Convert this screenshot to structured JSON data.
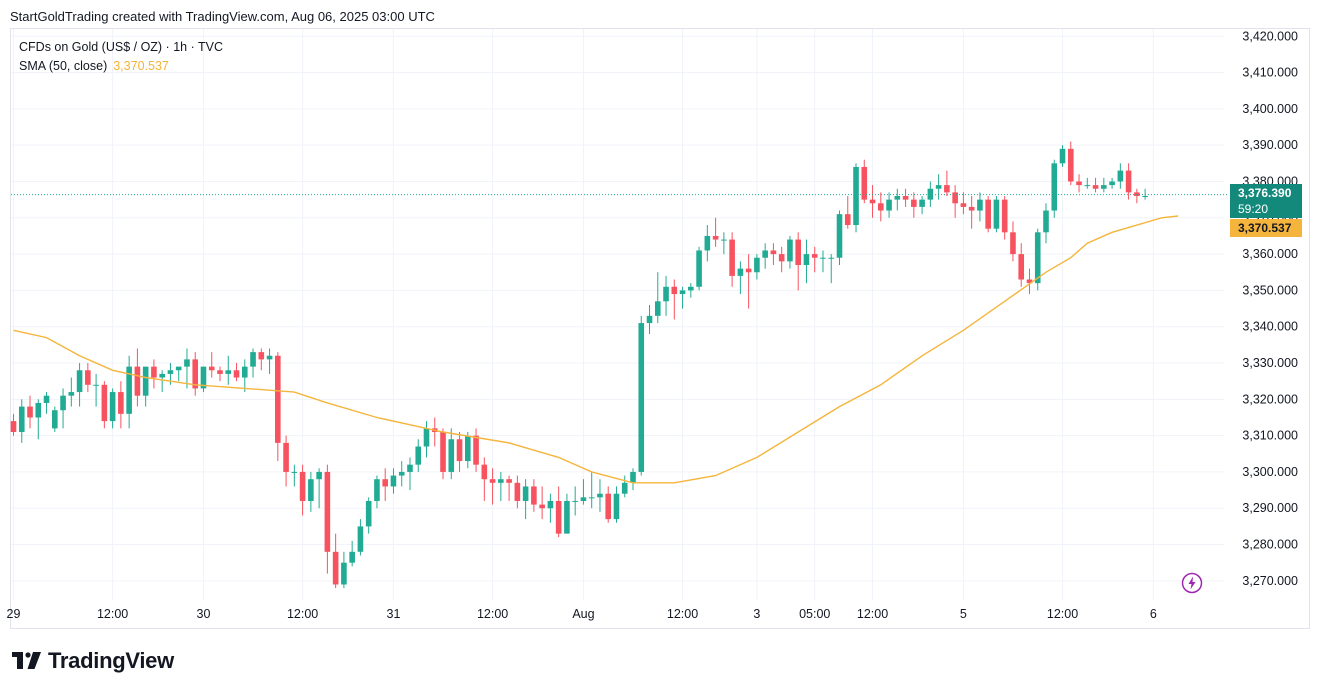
{
  "attribution": "StartGoldTrading created with TradingView.com, Aug 06, 2025 03:00 UTC",
  "legend": {
    "symbol": "CFDs on Gold (US$ / OZ) · 1h · TVC",
    "indicator": "SMA (50, close)",
    "indicator_value": "3,370.537"
  },
  "badges": {
    "last_price": "3,376.390",
    "countdown": "59:20",
    "sma_value": "3,370.537"
  },
  "brand": "TradingView",
  "icons": [
    "tradingview-logo-icon",
    "flash-icon"
  ],
  "colors": {
    "up": "#22ab94",
    "down": "#f7525f",
    "sma": "#f5b53c",
    "last_price_line": "#22ab94"
  },
  "chart_data": {
    "type": "candlestick",
    "symbol": "CFDs on Gold (US$ / OZ)",
    "interval": "1h",
    "ylim": [
      3265,
      3422
    ],
    "y_ticks": [
      "3,420.000",
      "3,410.000",
      "3,400.000",
      "3,390.000",
      "3,380.000",
      "3,370.000",
      "3,360.000",
      "3,350.000",
      "3,340.000",
      "3,330.000",
      "3,320.000",
      "3,310.000",
      "3,300.000",
      "3,290.000",
      "3,280.000",
      "3,270.000"
    ],
    "x_ticks": [
      {
        "label": "29",
        "bar": 0
      },
      {
        "label": "12:00",
        "bar": 12
      },
      {
        "label": "30",
        "bar": 23
      },
      {
        "label": "12:00",
        "bar": 35
      },
      {
        "label": "31",
        "bar": 46
      },
      {
        "label": "12:00",
        "bar": 58
      },
      {
        "label": "Aug",
        "bar": 69
      },
      {
        "label": "12:00",
        "bar": 81
      },
      {
        "label": "3",
        "bar": 90
      },
      {
        "label": "05:00",
        "bar": 97
      },
      {
        "label": "12:00",
        "bar": 104
      },
      {
        "label": "5",
        "bar": 115
      },
      {
        "label": "12:00",
        "bar": 127
      },
      {
        "label": "6",
        "bar": 138
      }
    ],
    "last_price": 3376.39,
    "sma_value": 3370.537,
    "candles": [
      [
        3314,
        3316,
        3310,
        3311
      ],
      [
        3311,
        3320,
        3308,
        3318
      ],
      [
        3318,
        3321,
        3312,
        3315
      ],
      [
        3315,
        3320,
        3309,
        3319
      ],
      [
        3319,
        3322,
        3316,
        3321
      ],
      [
        3312,
        3318,
        3311,
        3317
      ],
      [
        3317,
        3323,
        3312,
        3321
      ],
      [
        3321,
        3326,
        3318,
        3322
      ],
      [
        3322,
        3330,
        3318,
        3328
      ],
      [
        3328,
        3330,
        3322,
        3324
      ],
      [
        3324,
        3327,
        3318,
        3324
      ],
      [
        3324,
        3325,
        3312,
        3314
      ],
      [
        3314,
        3323,
        3312,
        3322
      ],
      [
        3322,
        3325,
        3312,
        3316
      ],
      [
        3316,
        3332,
        3312,
        3329
      ],
      [
        3329,
        3334,
        3318,
        3321
      ],
      [
        3321,
        3328,
        3318,
        3329
      ],
      [
        3329,
        3331,
        3323,
        3326
      ],
      [
        3326,
        3328,
        3322,
        3327
      ],
      [
        3327,
        3330,
        3324,
        3328
      ],
      [
        3328,
        3329,
        3325,
        3329
      ],
      [
        3329,
        3334,
        3323,
        3331
      ],
      [
        3331,
        3333,
        3321,
        3323
      ],
      [
        3323,
        3329,
        3322,
        3329
      ],
      [
        3329,
        3333,
        3326,
        3328
      ],
      [
        3328,
        3329,
        3325,
        3327
      ],
      [
        3327,
        3332,
        3324,
        3328
      ],
      [
        3328,
        3330,
        3325,
        3326
      ],
      [
        3326,
        3331,
        3322,
        3329
      ],
      [
        3329,
        3334,
        3326,
        3333
      ],
      [
        3333,
        3334,
        3328,
        3331
      ],
      [
        3331,
        3334,
        3327,
        3332
      ],
      [
        3332,
        3333,
        3303,
        3308
      ],
      [
        3308,
        3310,
        3296,
        3300
      ],
      [
        3300,
        3302,
        3296,
        3300
      ],
      [
        3300,
        3302,
        3288,
        3292
      ],
      [
        3292,
        3300,
        3289,
        3298
      ],
      [
        3298,
        3301,
        3290,
        3300
      ],
      [
        3300,
        3302,
        3272,
        3278
      ],
      [
        3278,
        3283,
        3268,
        3269
      ],
      [
        3269,
        3278,
        3268,
        3275
      ],
      [
        3275,
        3281,
        3274,
        3278
      ],
      [
        3278,
        3287,
        3277,
        3285
      ],
      [
        3285,
        3293,
        3283,
        3292
      ],
      [
        3292,
        3299,
        3290,
        3298
      ],
      [
        3298,
        3301,
        3292,
        3296
      ],
      [
        3296,
        3301,
        3294,
        3299
      ],
      [
        3299,
        3303,
        3296,
        3300
      ],
      [
        3300,
        3304,
        3295,
        3302
      ],
      [
        3302,
        3309,
        3300,
        3307
      ],
      [
        3307,
        3314,
        3304,
        3312
      ],
      [
        3312,
        3315,
        3307,
        3311
      ],
      [
        3311,
        3312,
        3298,
        3300
      ],
      [
        3300,
        3312,
        3298,
        3309
      ],
      [
        3309,
        3311,
        3300,
        3303
      ],
      [
        3303,
        3311,
        3301,
        3310
      ],
      [
        3310,
        3312,
        3300,
        3302
      ],
      [
        3302,
        3304,
        3292,
        3298
      ],
      [
        3298,
        3301,
        3291,
        3297
      ],
      [
        3297,
        3300,
        3292,
        3298
      ],
      [
        3298,
        3299,
        3292,
        3297
      ],
      [
        3297,
        3299,
        3290,
        3292
      ],
      [
        3292,
        3298,
        3287,
        3296
      ],
      [
        3296,
        3298,
        3289,
        3291
      ],
      [
        3291,
        3296,
        3287,
        3290
      ],
      [
        3290,
        3294,
        3286,
        3292
      ],
      [
        3292,
        3296,
        3282,
        3283
      ],
      [
        3283,
        3294,
        3283,
        3292
      ],
      [
        3292,
        3296,
        3288,
        3292
      ],
      [
        3292,
        3298,
        3291,
        3293
      ],
      [
        3293,
        3300,
        3290,
        3293
      ],
      [
        3293,
        3298,
        3289,
        3294
      ],
      [
        3294,
        3296,
        3286,
        3287
      ],
      [
        3287,
        3296,
        3286,
        3294
      ],
      [
        3294,
        3299,
        3293,
        3297
      ],
      [
        3297,
        3301,
        3295,
        3300
      ],
      [
        3300,
        3343,
        3299,
        3341
      ],
      [
        3341,
        3346,
        3338,
        3343
      ],
      [
        3343,
        3355,
        3341,
        3347
      ],
      [
        3347,
        3354,
        3343,
        3351
      ],
      [
        3351,
        3353,
        3342,
        3349
      ],
      [
        3349,
        3351,
        3345,
        3350
      ],
      [
        3350,
        3352,
        3348,
        3351
      ],
      [
        3351,
        3362,
        3350,
        3361
      ],
      [
        3361,
        3368,
        3358,
        3365
      ],
      [
        3365,
        3370,
        3362,
        3364
      ],
      [
        3364,
        3366,
        3360,
        3364
      ],
      [
        3364,
        3366,
        3351,
        3354
      ],
      [
        3354,
        3358,
        3349,
        3356
      ],
      [
        3356,
        3360,
        3345,
        3355
      ],
      [
        3355,
        3360,
        3353,
        3359
      ],
      [
        3359,
        3363,
        3356,
        3361
      ],
      [
        3361,
        3363,
        3357,
        3360
      ],
      [
        3360,
        3362,
        3355,
        3358
      ],
      [
        3358,
        3365,
        3356,
        3364
      ],
      [
        3364,
        3366,
        3350,
        3357
      ],
      [
        3357,
        3364,
        3352,
        3360
      ],
      [
        3360,
        3362,
        3355,
        3359
      ],
      [
        3359,
        3361,
        3355,
        3359
      ],
      [
        3359,
        3360,
        3352,
        3359
      ],
      [
        3359,
        3372,
        3357,
        3371
      ],
      [
        3371,
        3376,
        3367,
        3368
      ],
      [
        3368,
        3385,
        3366,
        3384
      ],
      [
        3384,
        3386,
        3374,
        3375
      ],
      [
        3375,
        3379,
        3370,
        3374
      ],
      [
        3374,
        3377,
        3369,
        3372
      ],
      [
        3372,
        3377,
        3370,
        3375
      ],
      [
        3375,
        3378,
        3372,
        3376
      ],
      [
        3376,
        3378,
        3373,
        3375
      ],
      [
        3375,
        3377,
        3370,
        3373
      ],
      [
        3373,
        3376,
        3371,
        3375
      ],
      [
        3375,
        3380,
        3373,
        3378
      ],
      [
        3378,
        3382,
        3375,
        3379
      ],
      [
        3379,
        3383,
        3376,
        3377
      ],
      [
        3377,
        3379,
        3370,
        3374
      ],
      [
        3374,
        3377,
        3371,
        3373
      ],
      [
        3373,
        3376,
        3367,
        3372
      ],
      [
        3372,
        3377,
        3369,
        3375
      ],
      [
        3375,
        3376,
        3366,
        3367
      ],
      [
        3367,
        3376,
        3366,
        3375
      ],
      [
        3375,
        3376,
        3364,
        3366
      ],
      [
        3366,
        3369,
        3358,
        3360
      ],
      [
        3360,
        3363,
        3351,
        3353
      ],
      [
        3353,
        3356,
        3349,
        3352
      ],
      [
        3352,
        3367,
        3350,
        3366
      ],
      [
        3366,
        3374,
        3363,
        3372
      ],
      [
        3372,
        3386,
        3370,
        3385
      ],
      [
        3385,
        3390,
        3384,
        3389
      ],
      [
        3389,
        3391,
        3379,
        3380
      ],
      [
        3380,
        3382,
        3377,
        3379
      ],
      [
        3379,
        3381,
        3378,
        3379
      ],
      [
        3379,
        3381,
        3377,
        3378
      ],
      [
        3378,
        3381,
        3377,
        3379
      ],
      [
        3379,
        3381,
        3378,
        3380
      ],
      [
        3380,
        3385,
        3378,
        3383
      ],
      [
        3383,
        3385,
        3375,
        3377
      ],
      [
        3377,
        3378,
        3374,
        3376
      ],
      [
        3376,
        3378,
        3375,
        3376
      ]
    ],
    "sma": [
      [
        0,
        3339
      ],
      [
        4,
        3337
      ],
      [
        8,
        3332
      ],
      [
        12,
        3328
      ],
      [
        16,
        3326
      ],
      [
        22,
        3324
      ],
      [
        28,
        3323
      ],
      [
        34,
        3322
      ],
      [
        38,
        3319
      ],
      [
        44,
        3315
      ],
      [
        52,
        3311
      ],
      [
        60,
        3308
      ],
      [
        66,
        3304
      ],
      [
        70,
        3300
      ],
      [
        75,
        3297
      ],
      [
        80,
        3297
      ],
      [
        85,
        3299
      ],
      [
        90,
        3304
      ],
      [
        95,
        3311
      ],
      [
        100,
        3318
      ],
      [
        105,
        3324
      ],
      [
        110,
        3332
      ],
      [
        115,
        3339
      ],
      [
        120,
        3347
      ],
      [
        125,
        3355
      ],
      [
        128,
        3359
      ],
      [
        130,
        3363
      ],
      [
        133,
        3366
      ],
      [
        136,
        3368
      ],
      [
        139,
        3370
      ],
      [
        141,
        3370.5
      ]
    ]
  }
}
